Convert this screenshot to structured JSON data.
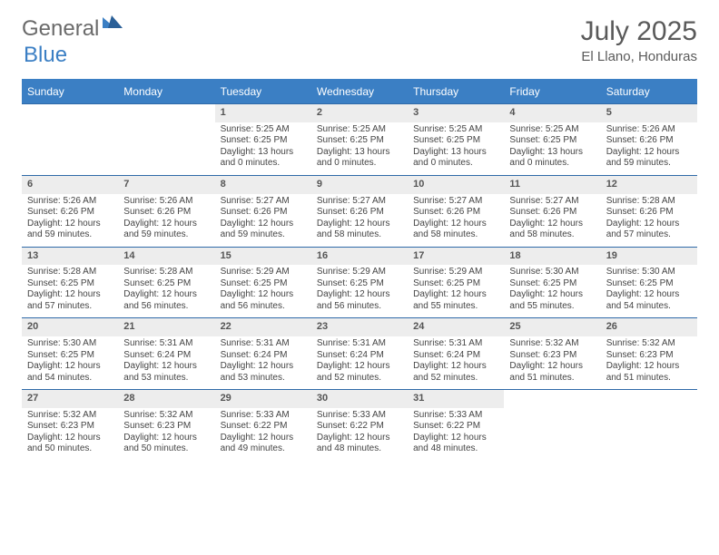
{
  "logo": {
    "word1": "General",
    "word2": "Blue"
  },
  "title": {
    "month": "July 2025",
    "location": "El Llano, Honduras"
  },
  "colors": {
    "header_bg": "#3b7fc4",
    "header_text": "#ffffff",
    "daynum_bg": "#ededed",
    "border": "#2f6aa8",
    "body_text": "#444444",
    "title_text": "#5a5a5a",
    "logo_gray": "#6a6a6a"
  },
  "day_headers": [
    "Sunday",
    "Monday",
    "Tuesday",
    "Wednesday",
    "Thursday",
    "Friday",
    "Saturday"
  ],
  "weeks": [
    [
      null,
      null,
      {
        "n": "1",
        "sr": "Sunrise: 5:25 AM",
        "ss": "Sunset: 6:25 PM",
        "dl": "Daylight: 13 hours and 0 minutes."
      },
      {
        "n": "2",
        "sr": "Sunrise: 5:25 AM",
        "ss": "Sunset: 6:25 PM",
        "dl": "Daylight: 13 hours and 0 minutes."
      },
      {
        "n": "3",
        "sr": "Sunrise: 5:25 AM",
        "ss": "Sunset: 6:25 PM",
        "dl": "Daylight: 13 hours and 0 minutes."
      },
      {
        "n": "4",
        "sr": "Sunrise: 5:25 AM",
        "ss": "Sunset: 6:25 PM",
        "dl": "Daylight: 13 hours and 0 minutes."
      },
      {
        "n": "5",
        "sr": "Sunrise: 5:26 AM",
        "ss": "Sunset: 6:26 PM",
        "dl": "Daylight: 12 hours and 59 minutes."
      }
    ],
    [
      {
        "n": "6",
        "sr": "Sunrise: 5:26 AM",
        "ss": "Sunset: 6:26 PM",
        "dl": "Daylight: 12 hours and 59 minutes."
      },
      {
        "n": "7",
        "sr": "Sunrise: 5:26 AM",
        "ss": "Sunset: 6:26 PM",
        "dl": "Daylight: 12 hours and 59 minutes."
      },
      {
        "n": "8",
        "sr": "Sunrise: 5:27 AM",
        "ss": "Sunset: 6:26 PM",
        "dl": "Daylight: 12 hours and 59 minutes."
      },
      {
        "n": "9",
        "sr": "Sunrise: 5:27 AM",
        "ss": "Sunset: 6:26 PM",
        "dl": "Daylight: 12 hours and 58 minutes."
      },
      {
        "n": "10",
        "sr": "Sunrise: 5:27 AM",
        "ss": "Sunset: 6:26 PM",
        "dl": "Daylight: 12 hours and 58 minutes."
      },
      {
        "n": "11",
        "sr": "Sunrise: 5:27 AM",
        "ss": "Sunset: 6:26 PM",
        "dl": "Daylight: 12 hours and 58 minutes."
      },
      {
        "n": "12",
        "sr": "Sunrise: 5:28 AM",
        "ss": "Sunset: 6:26 PM",
        "dl": "Daylight: 12 hours and 57 minutes."
      }
    ],
    [
      {
        "n": "13",
        "sr": "Sunrise: 5:28 AM",
        "ss": "Sunset: 6:25 PM",
        "dl": "Daylight: 12 hours and 57 minutes."
      },
      {
        "n": "14",
        "sr": "Sunrise: 5:28 AM",
        "ss": "Sunset: 6:25 PM",
        "dl": "Daylight: 12 hours and 56 minutes."
      },
      {
        "n": "15",
        "sr": "Sunrise: 5:29 AM",
        "ss": "Sunset: 6:25 PM",
        "dl": "Daylight: 12 hours and 56 minutes."
      },
      {
        "n": "16",
        "sr": "Sunrise: 5:29 AM",
        "ss": "Sunset: 6:25 PM",
        "dl": "Daylight: 12 hours and 56 minutes."
      },
      {
        "n": "17",
        "sr": "Sunrise: 5:29 AM",
        "ss": "Sunset: 6:25 PM",
        "dl": "Daylight: 12 hours and 55 minutes."
      },
      {
        "n": "18",
        "sr": "Sunrise: 5:30 AM",
        "ss": "Sunset: 6:25 PM",
        "dl": "Daylight: 12 hours and 55 minutes."
      },
      {
        "n": "19",
        "sr": "Sunrise: 5:30 AM",
        "ss": "Sunset: 6:25 PM",
        "dl": "Daylight: 12 hours and 54 minutes."
      }
    ],
    [
      {
        "n": "20",
        "sr": "Sunrise: 5:30 AM",
        "ss": "Sunset: 6:25 PM",
        "dl": "Daylight: 12 hours and 54 minutes."
      },
      {
        "n": "21",
        "sr": "Sunrise: 5:31 AM",
        "ss": "Sunset: 6:24 PM",
        "dl": "Daylight: 12 hours and 53 minutes."
      },
      {
        "n": "22",
        "sr": "Sunrise: 5:31 AM",
        "ss": "Sunset: 6:24 PM",
        "dl": "Daylight: 12 hours and 53 minutes."
      },
      {
        "n": "23",
        "sr": "Sunrise: 5:31 AM",
        "ss": "Sunset: 6:24 PM",
        "dl": "Daylight: 12 hours and 52 minutes."
      },
      {
        "n": "24",
        "sr": "Sunrise: 5:31 AM",
        "ss": "Sunset: 6:24 PM",
        "dl": "Daylight: 12 hours and 52 minutes."
      },
      {
        "n": "25",
        "sr": "Sunrise: 5:32 AM",
        "ss": "Sunset: 6:23 PM",
        "dl": "Daylight: 12 hours and 51 minutes."
      },
      {
        "n": "26",
        "sr": "Sunrise: 5:32 AM",
        "ss": "Sunset: 6:23 PM",
        "dl": "Daylight: 12 hours and 51 minutes."
      }
    ],
    [
      {
        "n": "27",
        "sr": "Sunrise: 5:32 AM",
        "ss": "Sunset: 6:23 PM",
        "dl": "Daylight: 12 hours and 50 minutes."
      },
      {
        "n": "28",
        "sr": "Sunrise: 5:32 AM",
        "ss": "Sunset: 6:23 PM",
        "dl": "Daylight: 12 hours and 50 minutes."
      },
      {
        "n": "29",
        "sr": "Sunrise: 5:33 AM",
        "ss": "Sunset: 6:22 PM",
        "dl": "Daylight: 12 hours and 49 minutes."
      },
      {
        "n": "30",
        "sr": "Sunrise: 5:33 AM",
        "ss": "Sunset: 6:22 PM",
        "dl": "Daylight: 12 hours and 48 minutes."
      },
      {
        "n": "31",
        "sr": "Sunrise: 5:33 AM",
        "ss": "Sunset: 6:22 PM",
        "dl": "Daylight: 12 hours and 48 minutes."
      },
      null,
      null
    ]
  ]
}
